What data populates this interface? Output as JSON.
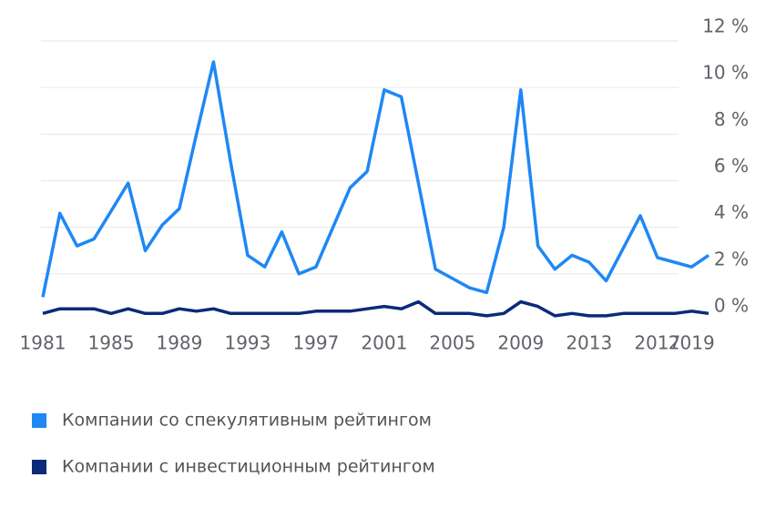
{
  "chart_data": {
    "type": "line",
    "x": [
      1981,
      1982,
      1983,
      1984,
      1985,
      1986,
      1987,
      1988,
      1989,
      1990,
      1991,
      1992,
      1993,
      1994,
      1995,
      1996,
      1997,
      1998,
      1999,
      2000,
      2001,
      2002,
      2003,
      2004,
      2005,
      2006,
      2007,
      2008,
      2009,
      2010,
      2011,
      2012,
      2013,
      2014,
      2015,
      2016,
      2017,
      2018,
      2019,
      2020
    ],
    "series": [
      {
        "name": "Компании со спекулятивным рейтингом",
        "color": "#1e88f5",
        "values": [
          1.0,
          4.6,
          3.2,
          3.5,
          4.7,
          5.9,
          3.0,
          4.1,
          4.8,
          8.0,
          11.1,
          6.8,
          2.8,
          2.3,
          3.8,
          2.0,
          2.3,
          4.0,
          5.7,
          6.4,
          9.9,
          9.6,
          5.9,
          2.2,
          1.8,
          1.4,
          1.2,
          4.0,
          9.9,
          3.2,
          2.2,
          2.8,
          2.5,
          1.7,
          3.1,
          4.5,
          2.7,
          2.5,
          2.3,
          2.8
        ]
      },
      {
        "name": "Компании с инвестиционным рейтингом",
        "color": "#0b2a7a",
        "values": [
          0.3,
          0.5,
          0.5,
          0.5,
          0.3,
          0.5,
          0.3,
          0.3,
          0.5,
          0.4,
          0.5,
          0.3,
          0.3,
          0.3,
          0.3,
          0.3,
          0.4,
          0.4,
          0.4,
          0.5,
          0.6,
          0.5,
          0.8,
          0.3,
          0.3,
          0.3,
          0.2,
          0.3,
          0.8,
          0.6,
          0.2,
          0.3,
          0.2,
          0.2,
          0.3,
          0.3,
          0.3,
          0.3,
          0.4,
          0.3
        ]
      }
    ],
    "xlim": [
      1981,
      2020
    ],
    "xticks": [
      1981,
      1985,
      1989,
      1993,
      1997,
      2001,
      2005,
      2009,
      2013,
      2017,
      2019
    ],
    "ylim": [
      0,
      12
    ],
    "yticks": [
      {
        "value": 0,
        "label": "0 %"
      },
      {
        "value": 2,
        "label": "2 %"
      },
      {
        "value": 4,
        "label": "4 %"
      },
      {
        "value": 6,
        "label": "6 %"
      },
      {
        "value": 8,
        "label": "8 %"
      },
      {
        "value": 10,
        "label": "10 %"
      },
      {
        "value": 12,
        "label": "12 %"
      }
    ],
    "grid": true
  }
}
